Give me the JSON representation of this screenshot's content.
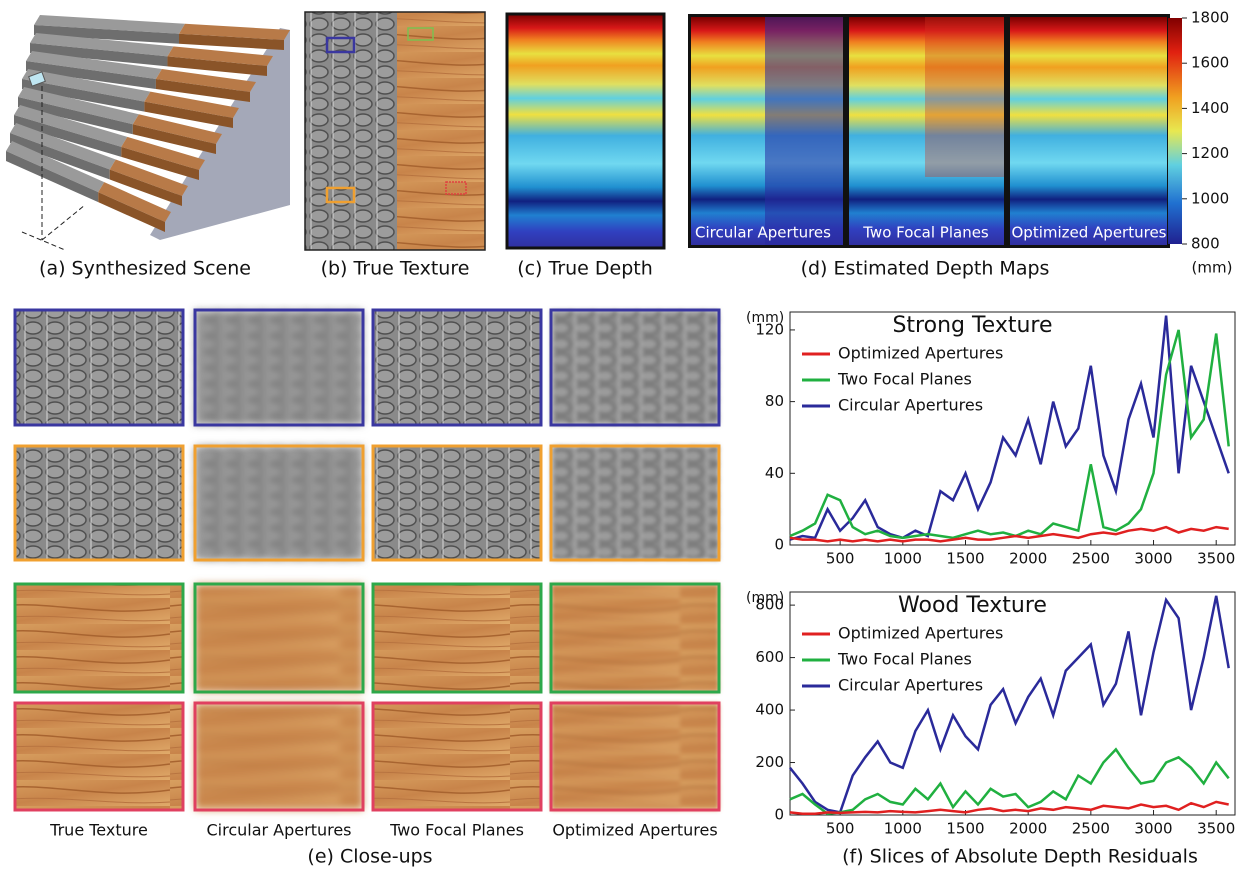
{
  "top_captions": [
    "(a) Synthesized Scene",
    "(b) True Texture",
    "(c) True Depth",
    "(d) Estimated Depth Maps"
  ],
  "depth_labels": [
    "Circular Apertures",
    "Two Focal Planes",
    "Optimized Apertures"
  ],
  "colorbar": {
    "lim": [
      800,
      1800
    ],
    "ticks": [
      800,
      1000,
      1200,
      1400,
      1600,
      1800
    ],
    "unit": "(mm)"
  },
  "closeups": {
    "columns": [
      "True Texture",
      "Circular Apertures",
      "Two Focal Planes",
      "Optimized Apertures"
    ],
    "caption": "(e) Close-ups"
  },
  "residuals_caption": "(f) Slices of Absolute Depth Residuals",
  "chart_data": [
    {
      "type": "line",
      "title": "Strong Texture",
      "y_label": "(mm)",
      "legend": "upper left",
      "x": [
        100,
        200,
        300,
        400,
        500,
        600,
        700,
        800,
        900,
        1000,
        1100,
        1200,
        1300,
        1400,
        1500,
        1600,
        1700,
        1800,
        1900,
        2000,
        2100,
        2200,
        2300,
        2400,
        2500,
        2600,
        2700,
        2800,
        2900,
        3000,
        3100,
        3200,
        3300,
        3400,
        3500,
        3600
      ],
      "xlim": [
        100,
        3650
      ],
      "xticks": [
        500,
        1000,
        1500,
        2000,
        2500,
        3000,
        3500
      ],
      "ylim": [
        0,
        130
      ],
      "yticks": [
        0,
        40,
        80,
        120
      ],
      "series": [
        {
          "name": "Optimized Apertures",
          "color": "#e02020",
          "values": [
            4,
            3,
            3,
            2,
            3,
            2,
            3,
            2,
            3,
            2,
            3,
            3,
            2,
            3,
            4,
            3,
            3,
            4,
            5,
            4,
            5,
            6,
            5,
            4,
            6,
            7,
            6,
            8,
            9,
            8,
            10,
            7,
            9,
            8,
            10,
            9
          ]
        },
        {
          "name": "Two Focal Planes",
          "color": "#20b040",
          "values": [
            5,
            8,
            12,
            28,
            25,
            10,
            6,
            8,
            5,
            4,
            5,
            6,
            5,
            4,
            6,
            8,
            6,
            7,
            5,
            8,
            6,
            12,
            10,
            8,
            45,
            10,
            8,
            12,
            20,
            40,
            95,
            120,
            60,
            70,
            118,
            55
          ]
        },
        {
          "name": "Circular Apertures",
          "color": "#2a2a9a",
          "values": [
            3,
            5,
            4,
            20,
            8,
            15,
            25,
            10,
            6,
            4,
            8,
            5,
            30,
            25,
            40,
            20,
            35,
            60,
            50,
            70,
            45,
            80,
            55,
            65,
            100,
            50,
            30,
            70,
            90,
            60,
            128,
            40,
            100,
            80,
            60,
            40
          ]
        }
      ]
    },
    {
      "type": "line",
      "title": "Wood Texture",
      "y_label": "(mm)",
      "legend": "upper left",
      "x": [
        100,
        200,
        300,
        400,
        500,
        600,
        700,
        800,
        900,
        1000,
        1100,
        1200,
        1300,
        1400,
        1500,
        1600,
        1700,
        1800,
        1900,
        2000,
        2100,
        2200,
        2300,
        2400,
        2500,
        2600,
        2700,
        2800,
        2900,
        3000,
        3100,
        3200,
        3300,
        3400,
        3500,
        3600
      ],
      "xlim": [
        100,
        3650
      ],
      "xticks": [
        500,
        1000,
        1500,
        2000,
        2500,
        3000,
        3500
      ],
      "ylim": [
        0,
        850
      ],
      "yticks": [
        0,
        200,
        400,
        600,
        800
      ],
      "series": [
        {
          "name": "Optimized Apertures",
          "color": "#e02020",
          "values": [
            10,
            5,
            5,
            10,
            8,
            10,
            12,
            10,
            15,
            12,
            10,
            15,
            20,
            15,
            10,
            20,
            25,
            15,
            20,
            15,
            25,
            20,
            30,
            25,
            20,
            35,
            30,
            25,
            40,
            30,
            35,
            20,
            45,
            30,
            50,
            40
          ]
        },
        {
          "name": "Two Focal Planes",
          "color": "#20b040",
          "values": [
            60,
            80,
            40,
            5,
            10,
            20,
            60,
            80,
            50,
            40,
            100,
            60,
            120,
            30,
            90,
            40,
            100,
            70,
            80,
            30,
            50,
            90,
            60,
            150,
            120,
            200,
            250,
            180,
            120,
            130,
            200,
            220,
            180,
            120,
            200,
            140
          ]
        },
        {
          "name": "Circular Apertures",
          "color": "#2a2a9a",
          "values": [
            180,
            120,
            50,
            20,
            10,
            150,
            220,
            280,
            200,
            180,
            320,
            400,
            250,
            380,
            300,
            250,
            420,
            480,
            350,
            450,
            520,
            380,
            550,
            600,
            650,
            420,
            500,
            700,
            380,
            620,
            820,
            750,
            400,
            600,
            835,
            560
          ]
        }
      ]
    }
  ]
}
